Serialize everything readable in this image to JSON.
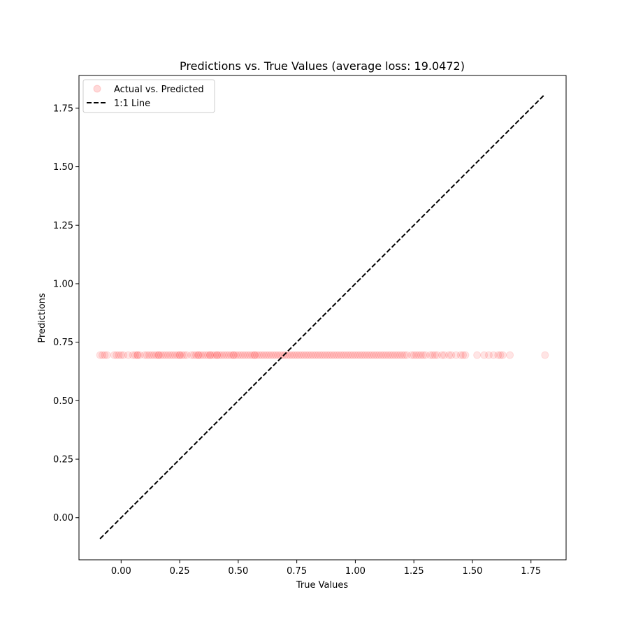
{
  "chart_data": {
    "type": "scatter",
    "title": "Predictions vs. True Values (average loss: 19.0472)",
    "xlabel": "True Values",
    "ylabel": "Predictions",
    "xlim": [
      -0.18,
      1.9
    ],
    "ylim": [
      -0.18,
      1.89
    ],
    "xticks": [
      0.0,
      0.25,
      0.5,
      0.75,
      1.0,
      1.25,
      1.5,
      1.75
    ],
    "xtick_labels": [
      "0.00",
      "0.25",
      "0.50",
      "0.75",
      "1.00",
      "1.25",
      "1.50",
      "1.75"
    ],
    "yticks": [
      0.0,
      0.25,
      0.5,
      0.75,
      1.0,
      1.25,
      1.5,
      1.75
    ],
    "ytick_labels": [
      "0.00",
      "0.25",
      "0.50",
      "0.75",
      "1.00",
      "1.25",
      "1.50",
      "1.75"
    ],
    "grid": false,
    "legend": {
      "placement": "upper-left",
      "entries": [
        "Actual vs. Predicted",
        "1:1 Line"
      ]
    },
    "series": [
      {
        "name": "Actual vs. Predicted",
        "kind": "scatter",
        "color": "#ff0000",
        "alpha": 0.1,
        "x": [
          -0.09,
          -0.08,
          -0.07,
          -0.06,
          -0.03,
          -0.02,
          -0.01,
          0.0,
          0.01,
          0.03,
          0.05,
          0.06,
          0.07,
          0.07,
          0.08,
          0.1,
          0.11,
          0.12,
          0.13,
          0.14,
          0.15,
          0.16,
          0.16,
          0.17,
          0.18,
          0.19,
          0.2,
          0.21,
          0.22,
          0.23,
          0.24,
          0.25,
          0.25,
          0.26,
          0.27,
          0.28,
          0.3,
          0.31,
          0.32,
          0.33,
          0.33,
          0.34,
          0.35,
          0.36,
          0.37,
          0.38,
          0.38,
          0.39,
          0.4,
          0.41,
          0.41,
          0.42,
          0.43,
          0.44,
          0.45,
          0.46,
          0.47,
          0.48,
          0.48,
          0.49,
          0.5,
          0.51,
          0.52,
          0.53,
          0.54,
          0.55,
          0.56,
          0.57,
          0.57,
          0.58,
          0.59,
          0.6,
          0.61,
          0.62,
          0.63,
          0.64,
          0.65,
          0.66,
          0.67,
          0.68,
          0.69,
          0.7,
          0.71,
          0.72,
          0.73,
          0.74,
          0.75,
          0.76,
          0.77,
          0.78,
          0.79,
          0.8,
          0.81,
          0.82,
          0.83,
          0.84,
          0.85,
          0.86,
          0.87,
          0.88,
          0.89,
          0.9,
          0.91,
          0.92,
          0.93,
          0.94,
          0.95,
          0.96,
          0.97,
          0.98,
          0.99,
          1.0,
          1.01,
          1.02,
          1.03,
          1.04,
          1.05,
          1.06,
          1.07,
          1.08,
          1.09,
          1.1,
          1.11,
          1.12,
          1.13,
          1.14,
          1.15,
          1.16,
          1.17,
          1.18,
          1.19,
          1.2,
          1.21,
          1.22,
          1.24,
          1.25,
          1.26,
          1.27,
          1.28,
          1.29,
          1.3,
          1.32,
          1.33,
          1.34,
          1.35,
          1.37,
          1.38,
          1.4,
          1.41,
          1.43,
          1.45,
          1.46,
          1.47,
          1.52,
          1.55,
          1.57,
          1.59,
          1.61,
          1.62,
          1.63,
          1.66,
          1.81
        ],
        "y_constant": 0.695
      },
      {
        "name": "1:1 Line",
        "kind": "line",
        "color": "#000000",
        "dash": "dashed",
        "x": [
          -0.09,
          1.81
        ],
        "y": [
          -0.09,
          1.81
        ]
      }
    ]
  }
}
